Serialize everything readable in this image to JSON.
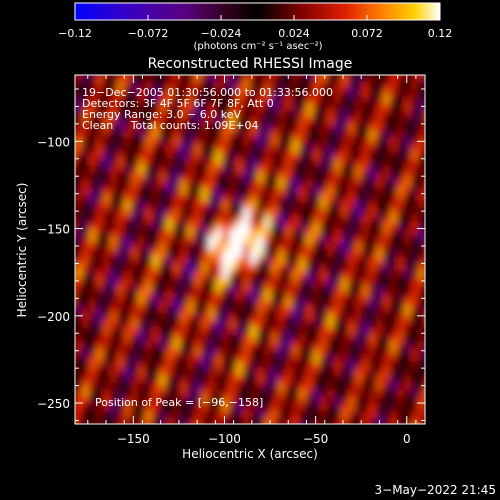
{
  "colorbar": {
    "ticks": [
      -0.12,
      -0.072,
      -0.024,
      0.024,
      0.072,
      0.12
    ],
    "tick_labels": [
      "−0.12",
      "−0.072",
      "−0.024",
      "0.024",
      "0.072",
      "0.12"
    ],
    "unit_label": "(photons cm⁻² s⁻¹ asec⁻²)",
    "range": [
      -0.12,
      0.12
    ],
    "colors": [
      "#0000ff",
      "#3a00c0",
      "#5a0080",
      "#300018",
      "#000000",
      "#800000",
      "#e02000",
      "#ff8000",
      "#ffd000",
      "#ffffff"
    ]
  },
  "chart_data": {
    "type": "heatmap",
    "title": "Reconstructed RHESSI Image",
    "xlabel": "Heliocentric X (arcsec)",
    "ylabel": "Heliocentric Y (arcsec)",
    "xlim": [
      -182,
      10
    ],
    "ylim": [
      -262,
      -62
    ],
    "xticks": [
      -150,
      -100,
      -50,
      0
    ],
    "xtick_labels": [
      "−150",
      "−100",
      "−50",
      "0"
    ],
    "yticks": [
      -100,
      -150,
      -200,
      -250
    ],
    "ytick_labels": [
      "−100",
      "−150",
      "−200",
      "−250"
    ],
    "peak": {
      "x": -96,
      "y": -158,
      "value": 0.12
    },
    "grid": false,
    "annotations": {
      "time": "19−Dec−2005 01:30:56.000 to 01:33:56.000",
      "detectors": "Detectors: 3F 4F 5F 6F 7F 8F, Att 0",
      "energy": "Energy Range: 3.0 − 6.0 keV",
      "clean": "Clean     Total counts: 1.09E+04",
      "peak_label": "Position of Peak = [−96,−158]"
    }
  },
  "footer": {
    "timestamp": "3−May−2022 21:45"
  }
}
